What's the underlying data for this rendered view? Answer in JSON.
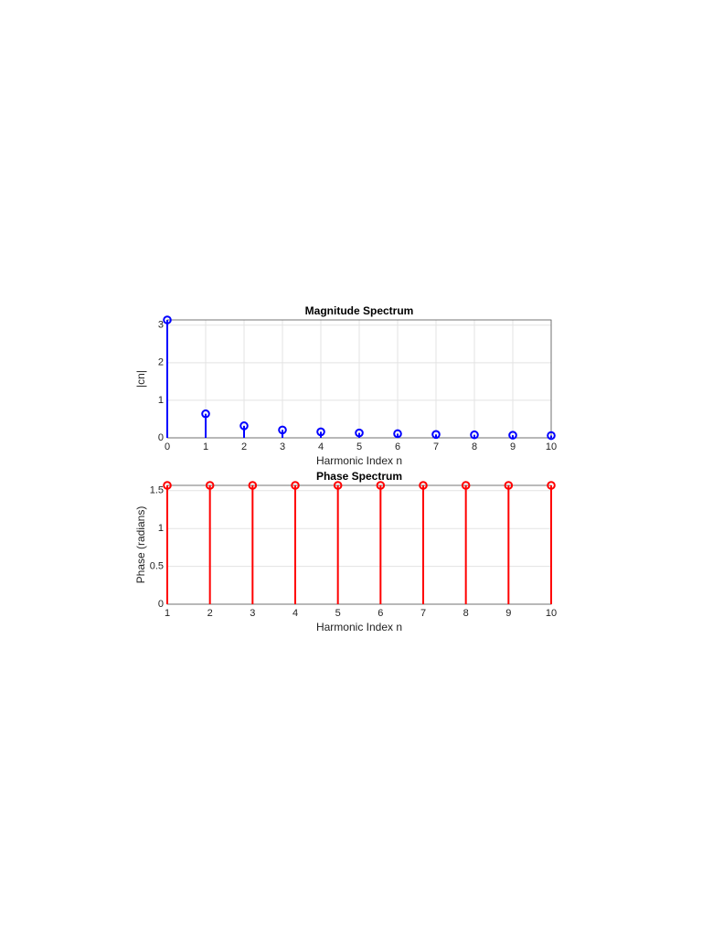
{
  "chart_data": [
    {
      "type": "stem",
      "title": "Magnitude Spectrum",
      "x_label": "Harmonic Index n",
      "y_label": "|cn|",
      "x": [
        0,
        1,
        2,
        3,
        4,
        5,
        6,
        7,
        8,
        9,
        10
      ],
      "values": [
        3.14,
        0.64,
        0.32,
        0.21,
        0.16,
        0.13,
        0.11,
        0.09,
        0.08,
        0.07,
        0.06
      ],
      "color": "#0000ff",
      "xlim": [
        0,
        10
      ],
      "xticks": [
        0,
        1,
        2,
        3,
        4,
        5,
        6,
        7,
        8,
        9,
        10
      ],
      "ylim": [
        0,
        3.14
      ],
      "yticks": [
        0,
        1,
        2,
        3
      ],
      "grid": true
    },
    {
      "type": "stem",
      "title": "Phase Spectrum",
      "x_label": "Harmonic Index n",
      "y_label": "Phase (radians)",
      "x": [
        1,
        2,
        3,
        4,
        5,
        6,
        7,
        8,
        9,
        10
      ],
      "values": [
        1.57,
        1.57,
        1.57,
        1.57,
        1.57,
        1.57,
        1.57,
        1.57,
        1.57,
        1.57
      ],
      "color": "#ff0000",
      "xlim": [
        1,
        10
      ],
      "xticks": [
        1,
        2,
        3,
        4,
        5,
        6,
        7,
        8,
        9,
        10
      ],
      "ylim": [
        0,
        1.57
      ],
      "yticks": [
        0,
        0.5,
        1,
        1.5
      ],
      "grid": true
    }
  ]
}
